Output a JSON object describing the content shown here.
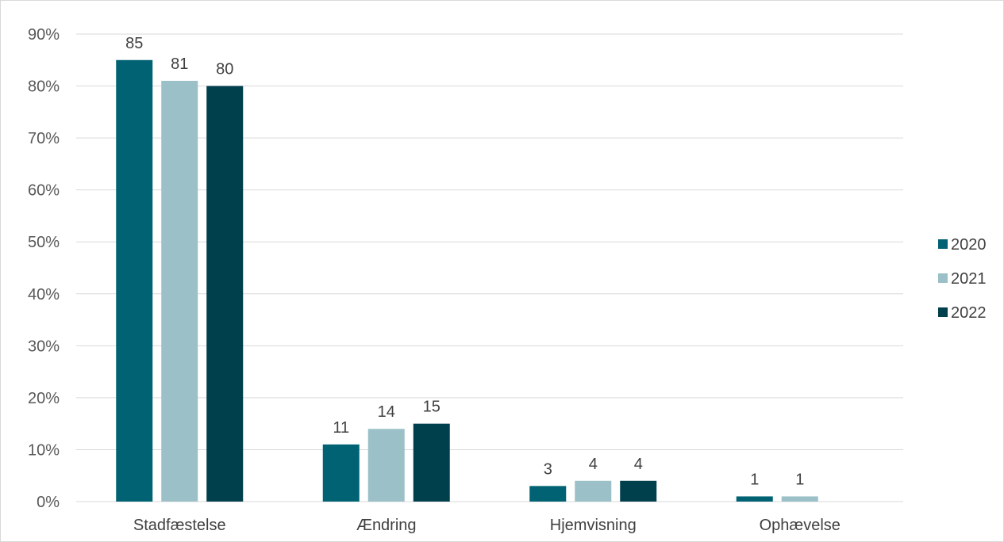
{
  "chart_data": {
    "type": "bar",
    "title": "",
    "xlabel": "",
    "ylabel": "",
    "categories": [
      "Stadfæstelse",
      "Ændring",
      "Hjemvisning",
      "Ophævelse"
    ],
    "series": [
      {
        "name": "2020",
        "color": "#006272",
        "values": [
          85,
          11,
          3,
          1
        ],
        "labels": [
          "85",
          "11",
          "3",
          "1"
        ]
      },
      {
        "name": "2021",
        "color": "#9BC0C7",
        "values": [
          81,
          14,
          4,
          1
        ],
        "labels": [
          "81",
          "14",
          "4",
          "1"
        ]
      },
      {
        "name": "2022",
        "color": "#003F4C",
        "values": [
          80,
          15,
          4,
          null
        ],
        "labels": [
          "80",
          "15",
          "4",
          ""
        ]
      }
    ],
    "ylim": [
      0,
      90
    ],
    "yticks": [
      0,
      10,
      20,
      30,
      40,
      50,
      60,
      70,
      80,
      90
    ],
    "ytick_labels": [
      "0%",
      "10%",
      "20%",
      "30%",
      "40%",
      "50%",
      "60%",
      "70%",
      "80%",
      "90%"
    ],
    "grid": true,
    "grid_color": "#d9d9d9",
    "legend_position": "right"
  }
}
